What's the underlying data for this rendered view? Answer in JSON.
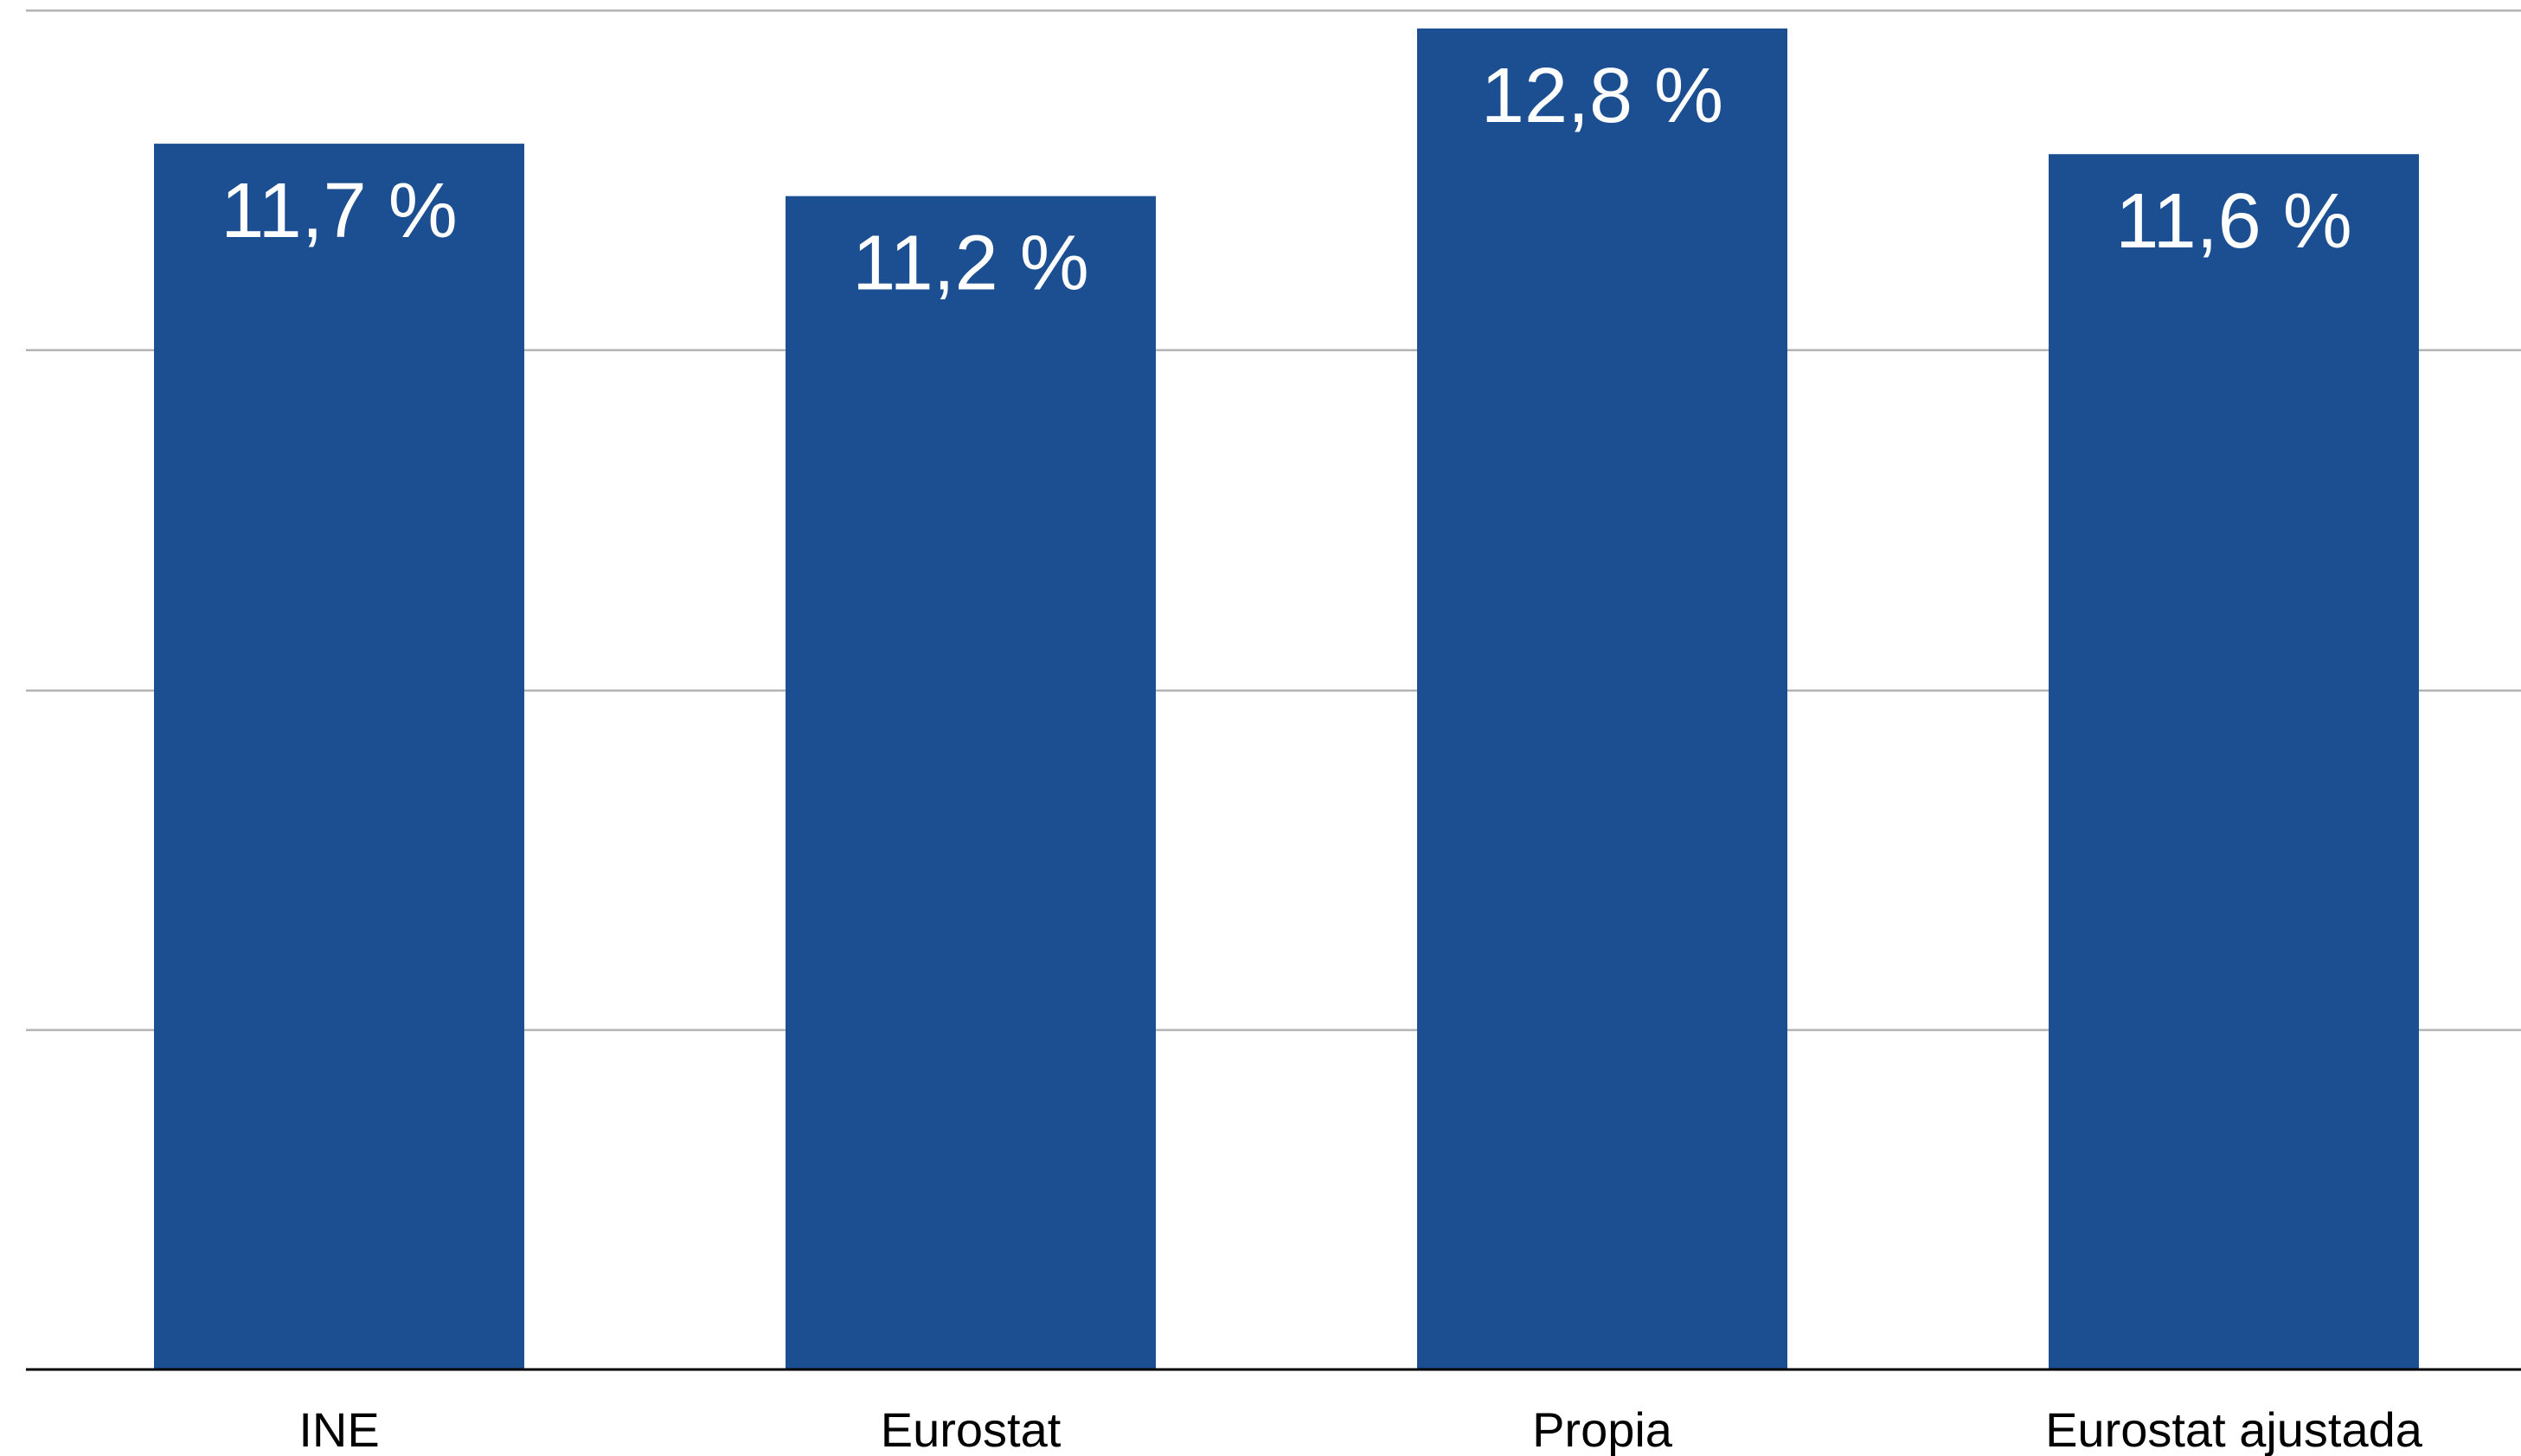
{
  "chart_data": {
    "type": "bar",
    "categories": [
      "INE",
      "Eurostat",
      "Propia",
      "Eurostat ajustada"
    ],
    "values": [
      11.7,
      11.2,
      12.8,
      11.6
    ],
    "data_labels": [
      "11,7 %",
      "11,2 %",
      "12,8 %",
      "11,6 %"
    ],
    "title": "",
    "xlabel": "",
    "ylabel": "",
    "ylim": [
      0,
      12.97
    ],
    "y_gridlines": [
      0,
      3.24,
      6.48,
      9.73,
      12.97
    ],
    "y_tick_labels_shown": false,
    "grid": true,
    "legend": "none",
    "colors": {
      "bar": "#1c4f91",
      "data_label": "#ffffff",
      "gridline": "#b3b3b3",
      "baseline": "#000000",
      "tick_label": "#000000"
    }
  }
}
